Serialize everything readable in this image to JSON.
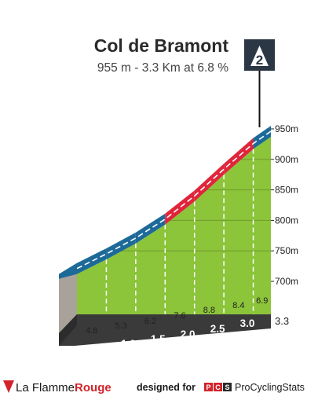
{
  "climb": {
    "name": "Col de Bramont",
    "subtitle": "955 m - 3.3 Km at 6.8 %",
    "category": "2"
  },
  "chart_data": {
    "type": "area",
    "xlabel": "",
    "ylabel": "",
    "x_km_ticks": [
      "0.5",
      "1.0",
      "1.5",
      "2.0",
      "2.5",
      "3.0"
    ],
    "x_end_label": "3.3",
    "y_labels": [
      "700m",
      "750m",
      "800m",
      "850m",
      "900m",
      "950m"
    ],
    "segments": [
      {
        "from_km": 0.0,
        "to_km": 0.5,
        "gradient": 4.8,
        "label": "4.8"
      },
      {
        "from_km": 0.5,
        "to_km": 1.0,
        "gradient": 5.3,
        "label": "5.3"
      },
      {
        "from_km": 1.0,
        "to_km": 1.5,
        "gradient": 6.2,
        "label": "6.2"
      },
      {
        "from_km": 1.5,
        "to_km": 2.0,
        "gradient": 7.6,
        "label": "7.6"
      },
      {
        "from_km": 2.0,
        "to_km": 2.5,
        "gradient": 8.8,
        "label": "8.8"
      },
      {
        "from_km": 2.5,
        "to_km": 3.0,
        "gradient": 8.4,
        "label": "8.4"
      },
      {
        "from_km": 3.0,
        "to_km": 3.3,
        "gradient": 6.9,
        "label": "6.9"
      }
    ],
    "profile": [
      {
        "km": 0.0,
        "alt": 730
      },
      {
        "km": 0.5,
        "alt": 754
      },
      {
        "km": 1.0,
        "alt": 780
      },
      {
        "km": 1.5,
        "alt": 811
      },
      {
        "km": 2.0,
        "alt": 849
      },
      {
        "km": 2.5,
        "alt": 893
      },
      {
        "km": 3.0,
        "alt": 935
      },
      {
        "km": 3.3,
        "alt": 955
      }
    ],
    "difficulty_colors": {
      "easy": "#1d6a99",
      "hard": "#e0253b"
    },
    "road_colors": {
      "grass": "#8cc43a",
      "side": "#a8a29a",
      "base": "#3a3a3a"
    }
  },
  "footer": {
    "brand_a": "La Flamme",
    "brand_b": "Rouge",
    "designed_for": "designed for",
    "pcs_text": "ProCyclingStats",
    "pcs_letters": [
      "P",
      "C",
      "S"
    ]
  }
}
